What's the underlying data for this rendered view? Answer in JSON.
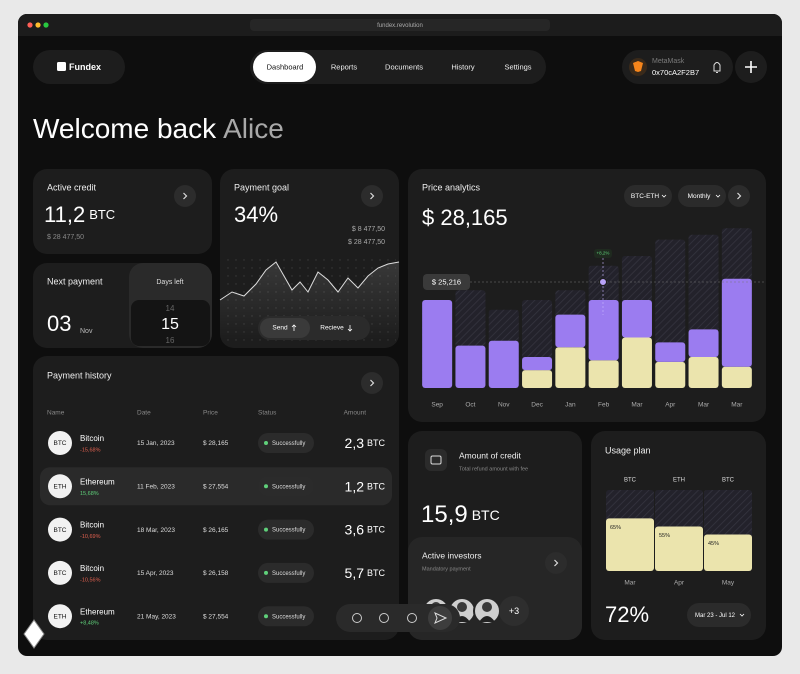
{
  "browser": {
    "url": "fundex.revolution"
  },
  "header": {
    "logo": "Fundex",
    "nav": [
      "Dashboard",
      "Reports",
      "Documents",
      "History",
      "Settings"
    ],
    "wallet": {
      "name": "MetaMask",
      "address": "0x70cA2F2B7"
    }
  },
  "welcome": {
    "greeting": "Welcome back",
    "name": "Alice"
  },
  "active_credit": {
    "title": "Active credit",
    "value": "11,2",
    "unit": "BTC",
    "sub": "$ 28 477,50"
  },
  "payment_goal": {
    "title": "Payment goal",
    "value": "34%",
    "amounts": [
      "$ 8 477,50",
      "$ 28 477,50"
    ],
    "buttons": [
      "Send",
      "Recieve"
    ]
  },
  "next_payment": {
    "title": "Next payment",
    "day": "03",
    "month": "Nov",
    "days_title": "Days left",
    "days": [
      "14",
      "15",
      "16"
    ]
  },
  "price_analytics": {
    "title": "Price analytics",
    "selectors": [
      "BTC-ETH",
      "Monthly"
    ],
    "value": "$ 28,165",
    "reference_label": "$ 25,216",
    "change_label": "+8,2%",
    "chart": {
      "type": "bar",
      "stacked": true,
      "categories": [
        "Sep",
        "Oct",
        "Nov",
        "Dec",
        "Jan",
        "Feb",
        "Mar",
        "Apr",
        "Mar",
        "Mar"
      ],
      "ylim": [
        0,
        100
      ],
      "background": {
        "color": "#23222b",
        "values": [
          52,
          60,
          48,
          54,
          60,
          75,
          81,
          91,
          94,
          98
        ]
      },
      "series": [
        {
          "color": "#ebe4ad",
          "values": [
            0,
            0,
            0,
            11,
            25,
            17,
            31,
            16,
            19,
            13
          ]
        },
        {
          "color": "#9b7cf0",
          "values": [
            54,
            26,
            29,
            8,
            20,
            37,
            23,
            12,
            17,
            54
          ]
        }
      ]
    }
  },
  "payment_history": {
    "title": "Payment history",
    "columns": [
      "Name",
      "Date",
      "Price",
      "Status",
      "Amount"
    ],
    "rows": [
      {
        "symbol": "BTC",
        "name": "Bitcoin",
        "change": "-15,68%",
        "date": "15 Jan, 2023",
        "price": "$ 28,165",
        "status": "Successfully",
        "amount": "2,3",
        "unit": "BTC"
      },
      {
        "symbol": "ETH",
        "name": "Ethereum",
        "change": "15,68%",
        "date": "11 Feb, 2023",
        "price": "$ 27,554",
        "status": "Successfully",
        "amount": "1,2",
        "unit": "BTC"
      },
      {
        "symbol": "BTC",
        "name": "Bitcoin",
        "change": "-10,69%",
        "date": "18 Mar, 2023",
        "price": "$ 26,165",
        "status": "Successfully",
        "amount": "3,6",
        "unit": "BTC"
      },
      {
        "symbol": "BTC",
        "name": "Bitcoin",
        "change": "-10,56%",
        "date": "15 Apr, 2023",
        "price": "$ 26,158",
        "status": "Successfully",
        "amount": "5,7",
        "unit": "BTC"
      },
      {
        "symbol": "ETH",
        "name": "Ethereum",
        "change": "+8,48%",
        "date": "21 May, 2023",
        "price": "$ 27,554",
        "status": "Successfully"
      }
    ]
  },
  "amount_of_credit": {
    "title": "Amount of credit",
    "sub": "Total refund amount with fee",
    "value": "15,9",
    "unit": "BTC"
  },
  "active_investors": {
    "title": "Active investors",
    "sub": "Mandatory payment",
    "more": "+3"
  },
  "usage_plan": {
    "title": "Usage plan",
    "value": "72%",
    "range": "Mar 23 - Jul 12",
    "chart": {
      "type": "bar",
      "series_labels": [
        "BTC",
        "ETH",
        "BTC"
      ],
      "categories": [
        "Mar",
        "Apr",
        "May"
      ],
      "values": [
        65,
        55,
        45
      ],
      "value_labels": [
        "65%",
        "55%",
        "45%"
      ],
      "color": "#ebe4ad",
      "ylim": [
        0,
        100
      ]
    }
  }
}
